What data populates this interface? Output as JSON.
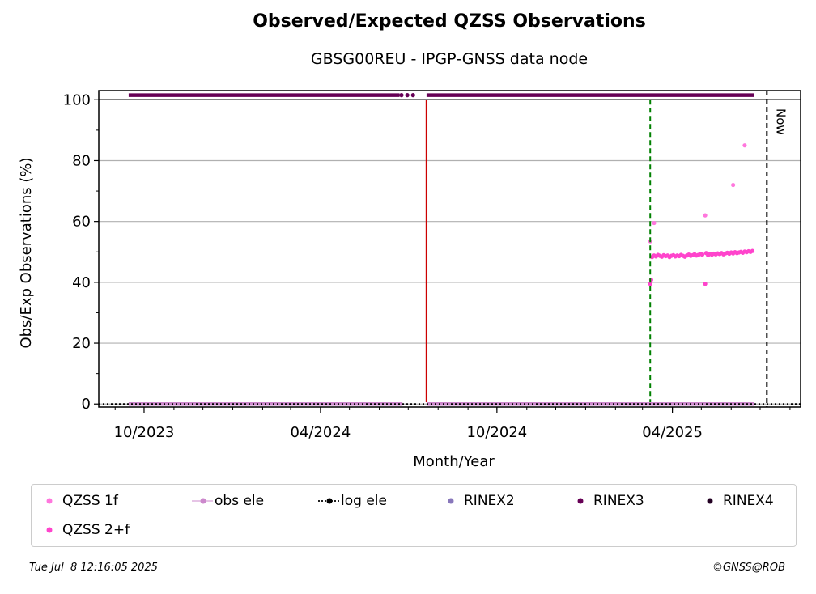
{
  "chart_data": {
    "type": "scatter",
    "title": "Observed/Expected QZSS Observations",
    "subtitle": "GBSG00REU - IPGP-GNSS data node",
    "xlabel": "Month/Year",
    "ylabel": "Obs/Exp Observations (%)",
    "x_axis": {
      "type": "date",
      "range": [
        "2023-08-15",
        "2025-08-12"
      ],
      "ticks": [
        {
          "date": "2023-10-01",
          "label": "10/2023"
        },
        {
          "date": "2024-04-01",
          "label": "04/2024"
        },
        {
          "date": "2024-10-01",
          "label": "10/2024"
        },
        {
          "date": "2025-04-01",
          "label": "04/2025"
        }
      ],
      "minor_ticks": "monthly"
    },
    "y_axis": {
      "range": [
        -1,
        103
      ],
      "ticks": [
        0,
        20,
        40,
        60,
        80,
        100
      ]
    },
    "grid": "horizontal",
    "markers": {
      "top_line_y": 100,
      "red_line": {
        "date": "2024-07-20",
        "color": "#cc0000",
        "style": "solid"
      },
      "green_line": {
        "date": "2025-03-09",
        "color": "#008000",
        "style": "dashed"
      },
      "now_line": {
        "date": "2025-07-08",
        "color": "#000000",
        "style": "dashed",
        "label": "Now"
      }
    },
    "series": [
      {
        "name": "QZSS 1f",
        "color": "#ff77dd",
        "points": [
          [
            "2025-03-09",
            53.5
          ],
          [
            "2025-03-13",
            59.5
          ],
          [
            "2025-05-05",
            62.0
          ],
          [
            "2025-06-03",
            72.0
          ],
          [
            "2025-06-15",
            85.0
          ]
        ]
      },
      {
        "name": "QZSS 2+f",
        "color": "#ff44cc",
        "points": [
          [
            "2025-03-09",
            39.5
          ],
          [
            "2025-03-10",
            40.8
          ],
          [
            "2025-03-11",
            48.3
          ],
          [
            "2025-03-13",
            48.8
          ],
          [
            "2025-03-15",
            48.5
          ],
          [
            "2025-03-17",
            49.0
          ],
          [
            "2025-03-19",
            48.7
          ],
          [
            "2025-03-21",
            48.4
          ],
          [
            "2025-03-23",
            48.9
          ],
          [
            "2025-03-25",
            48.6
          ],
          [
            "2025-03-27",
            48.8
          ],
          [
            "2025-03-29",
            48.3
          ],
          [
            "2025-03-31",
            48.7
          ],
          [
            "2025-04-02",
            48.9
          ],
          [
            "2025-04-04",
            48.5
          ],
          [
            "2025-04-06",
            48.8
          ],
          [
            "2025-04-08",
            48.6
          ],
          [
            "2025-04-10",
            49.0
          ],
          [
            "2025-04-12",
            48.7
          ],
          [
            "2025-04-14",
            48.4
          ],
          [
            "2025-04-16",
            48.8
          ],
          [
            "2025-04-18",
            49.1
          ],
          [
            "2025-04-20",
            48.7
          ],
          [
            "2025-04-22",
            48.9
          ],
          [
            "2025-04-24",
            49.2
          ],
          [
            "2025-04-26",
            48.8
          ],
          [
            "2025-04-28",
            49.0
          ],
          [
            "2025-04-30",
            49.3
          ],
          [
            "2025-05-02",
            49.1
          ],
          [
            "2025-05-05",
            39.5
          ],
          [
            "2025-05-06",
            49.6
          ],
          [
            "2025-05-08",
            48.9
          ],
          [
            "2025-05-10",
            49.3
          ],
          [
            "2025-05-12",
            49.1
          ],
          [
            "2025-05-14",
            49.4
          ],
          [
            "2025-05-16",
            49.2
          ],
          [
            "2025-05-18",
            49.5
          ],
          [
            "2025-05-20",
            49.3
          ],
          [
            "2025-05-22",
            49.6
          ],
          [
            "2025-05-24",
            49.2
          ],
          [
            "2025-05-26",
            49.5
          ],
          [
            "2025-05-28",
            49.7
          ],
          [
            "2025-05-30",
            49.4
          ],
          [
            "2025-06-01",
            49.8
          ],
          [
            "2025-06-03",
            49.5
          ],
          [
            "2025-06-05",
            49.9
          ],
          [
            "2025-06-07",
            49.6
          ],
          [
            "2025-06-09",
            49.8
          ],
          [
            "2025-06-11",
            50.0
          ],
          [
            "2025-06-13",
            49.7
          ],
          [
            "2025-06-15",
            50.1
          ],
          [
            "2025-06-17",
            49.9
          ],
          [
            "2025-06-19",
            50.2
          ],
          [
            "2025-06-21",
            50.0
          ],
          [
            "2025-06-23",
            50.3
          ]
        ]
      },
      {
        "name": "obs ele",
        "color": "#cc88cc",
        "y": 0,
        "segments": [
          [
            "2023-09-15",
            "2024-06-25"
          ],
          [
            "2024-07-20",
            "2025-06-25"
          ]
        ]
      },
      {
        "name": "log ele",
        "color": "#000000",
        "style": "dotted",
        "y": 0,
        "segments": [
          [
            "2023-08-15",
            "2025-08-12"
          ]
        ]
      },
      {
        "name": "RINEX2",
        "color": "#8877bb",
        "y": 100,
        "segments": []
      },
      {
        "name": "RINEX3",
        "color": "#660055",
        "y": 101.5,
        "segments": [
          [
            "2023-09-15",
            "2024-06-22"
          ],
          [
            "2024-07-20",
            "2025-06-25"
          ]
        ],
        "points": [
          [
            "2024-06-24",
            101.5
          ],
          [
            "2024-06-30",
            101.5
          ],
          [
            "2024-07-06",
            101.5
          ]
        ]
      },
      {
        "name": "RINEX4",
        "color": "#220022",
        "y": 100,
        "segments": []
      }
    ],
    "legend": {
      "position": "bottom",
      "items": [
        {
          "name": "QZSS 1f",
          "color": "#ff77dd",
          "style": "dot"
        },
        {
          "name": "obs ele",
          "color": "#cc88cc",
          "style": "line-dot"
        },
        {
          "name": "log ele",
          "color": "#000000",
          "style": "dotted-dot"
        },
        {
          "name": "RINEX2",
          "color": "#8877bb",
          "style": "dot"
        },
        {
          "name": "RINEX3",
          "color": "#660055",
          "style": "dot"
        },
        {
          "name": "RINEX4",
          "color": "#220022",
          "style": "dot"
        },
        {
          "name": "QZSS 2+f",
          "color": "#ff44cc",
          "style": "dot"
        }
      ]
    }
  },
  "footer": {
    "timestamp": "Tue Jul  8 12:16:05 2025",
    "credit": "©GNSS@ROB"
  }
}
